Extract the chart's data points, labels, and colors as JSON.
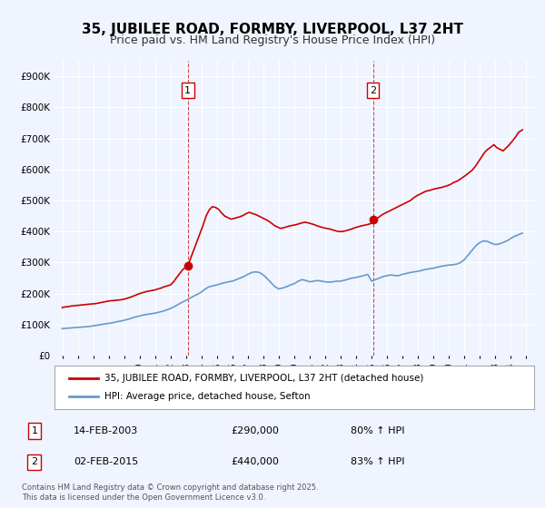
{
  "title": "35, JUBILEE ROAD, FORMBY, LIVERPOOL, L37 2HT",
  "subtitle": "Price paid vs. HM Land Registry's House Price Index (HPI)",
  "title_fontsize": 11,
  "subtitle_fontsize": 9,
  "bg_color": "#f0f4ff",
  "plot_bg_color": "#f0f4ff",
  "grid_color": "#ffffff",
  "red_line_color": "#cc0000",
  "blue_line_color": "#6699cc",
  "ylim": [
    0,
    950000
  ],
  "yticks": [
    0,
    100000,
    200000,
    300000,
    400000,
    500000,
    600000,
    700000,
    800000,
    900000
  ],
  "ytick_labels": [
    "£0",
    "£100K",
    "£200K",
    "£300K",
    "£400K",
    "£500K",
    "£600K",
    "£700K",
    "£800K",
    "£900K"
  ],
  "xlim_start": 1994.5,
  "xlim_end": 2025.5,
  "xtick_years": [
    1995,
    1996,
    1997,
    1998,
    1999,
    2000,
    2001,
    2002,
    2003,
    2004,
    2005,
    2006,
    2007,
    2008,
    2009,
    2010,
    2011,
    2012,
    2013,
    2014,
    2015,
    2016,
    2017,
    2018,
    2019,
    2020,
    2021,
    2022,
    2023,
    2024,
    2025
  ],
  "marker1_x": 2003.12,
  "marker1_y": 290000,
  "marker2_x": 2015.08,
  "marker2_y": 440000,
  "marker1_label": "1",
  "marker2_label": "2",
  "vline1_x": 2003.12,
  "vline2_x": 2015.08,
  "legend_label_red": "35, JUBILEE ROAD, FORMBY, LIVERPOOL, L37 2HT (detached house)",
  "legend_label_blue": "HPI: Average price, detached house, Sefton",
  "table_row1": [
    "1",
    "14-FEB-2003",
    "£290,000",
    "80% ↑ HPI"
  ],
  "table_row2": [
    "2",
    "02-FEB-2015",
    "£440,000",
    "83% ↑ HPI"
  ],
  "footer": "Contains HM Land Registry data © Crown copyright and database right 2025.\nThis data is licensed under the Open Government Licence v3.0.",
  "hpi_data": {
    "years": [
      1995.0,
      1995.25,
      1995.5,
      1995.75,
      1996.0,
      1996.25,
      1996.5,
      1996.75,
      1997.0,
      1997.25,
      1997.5,
      1997.75,
      1998.0,
      1998.25,
      1998.5,
      1998.75,
      1999.0,
      1999.25,
      1999.5,
      1999.75,
      2000.0,
      2000.25,
      2000.5,
      2000.75,
      2001.0,
      2001.25,
      2001.5,
      2001.75,
      2002.0,
      2002.25,
      2002.5,
      2002.75,
      2003.0,
      2003.25,
      2003.5,
      2003.75,
      2004.0,
      2004.25,
      2004.5,
      2004.75,
      2005.0,
      2005.25,
      2005.5,
      2005.75,
      2006.0,
      2006.25,
      2006.5,
      2006.75,
      2007.0,
      2007.25,
      2007.5,
      2007.75,
      2008.0,
      2008.25,
      2008.5,
      2008.75,
      2009.0,
      2009.25,
      2009.5,
      2009.75,
      2010.0,
      2010.25,
      2010.5,
      2010.75,
      2011.0,
      2011.25,
      2011.5,
      2011.75,
      2012.0,
      2012.25,
      2012.5,
      2012.75,
      2013.0,
      2013.25,
      2013.5,
      2013.75,
      2014.0,
      2014.25,
      2014.5,
      2014.75,
      2015.0,
      2015.25,
      2015.5,
      2015.75,
      2016.0,
      2016.25,
      2016.5,
      2016.75,
      2017.0,
      2017.25,
      2017.5,
      2017.75,
      2018.0,
      2018.25,
      2018.5,
      2018.75,
      2019.0,
      2019.25,
      2019.5,
      2019.75,
      2020.0,
      2020.25,
      2020.5,
      2020.75,
      2021.0,
      2021.25,
      2021.5,
      2021.75,
      2022.0,
      2022.25,
      2022.5,
      2022.75,
      2023.0,
      2023.25,
      2023.5,
      2023.75,
      2024.0,
      2024.25,
      2024.5,
      2024.75
    ],
    "values": [
      87000,
      88000,
      89000,
      90000,
      91000,
      92000,
      93000,
      94000,
      96000,
      98000,
      100000,
      102000,
      104000,
      106000,
      109000,
      111000,
      114000,
      117000,
      121000,
      125000,
      128000,
      131000,
      133000,
      135000,
      137000,
      140000,
      143000,
      147000,
      152000,
      158000,
      165000,
      172000,
      178000,
      185000,
      192000,
      198000,
      205000,
      215000,
      222000,
      225000,
      228000,
      232000,
      235000,
      238000,
      240000,
      245000,
      250000,
      255000,
      262000,
      268000,
      270000,
      268000,
      260000,
      248000,
      235000,
      222000,
      215000,
      218000,
      222000,
      228000,
      232000,
      240000,
      245000,
      242000,
      238000,
      240000,
      242000,
      240000,
      238000,
      237000,
      238000,
      240000,
      240000,
      243000,
      247000,
      250000,
      252000,
      255000,
      258000,
      262000,
      240000,
      245000,
      250000,
      255000,
      258000,
      260000,
      258000,
      258000,
      262000,
      265000,
      268000,
      270000,
      272000,
      275000,
      278000,
      280000,
      282000,
      285000,
      288000,
      290000,
      292000,
      293000,
      295000,
      300000,
      310000,
      325000,
      340000,
      355000,
      365000,
      370000,
      368000,
      362000,
      358000,
      360000,
      365000,
      370000,
      378000,
      385000,
      390000,
      395000
    ]
  },
  "price_paid_data": {
    "years": [
      1995.0,
      1995.2,
      1995.4,
      1995.6,
      1995.8,
      1996.0,
      1996.2,
      1996.4,
      1996.6,
      1996.8,
      1997.0,
      1997.2,
      1997.4,
      1997.6,
      1997.8,
      1998.0,
      1998.2,
      1998.4,
      1998.6,
      1998.8,
      1999.0,
      1999.2,
      1999.4,
      1999.6,
      1999.8,
      2000.0,
      2000.2,
      2000.4,
      2000.6,
      2000.8,
      2001.0,
      2001.2,
      2001.4,
      2001.6,
      2001.8,
      2002.0,
      2002.2,
      2002.4,
      2002.6,
      2002.8,
      2003.12,
      2003.5,
      2003.8,
      2004.1,
      2004.3,
      2004.5,
      2004.7,
      2004.9,
      2005.1,
      2005.3,
      2005.5,
      2005.7,
      2005.9,
      2006.1,
      2006.3,
      2006.5,
      2006.7,
      2006.9,
      2007.1,
      2007.3,
      2007.5,
      2007.7,
      2007.9,
      2008.1,
      2008.3,
      2008.5,
      2008.7,
      2008.9,
      2009.1,
      2009.3,
      2009.5,
      2009.7,
      2009.9,
      2010.1,
      2010.3,
      2010.5,
      2010.7,
      2010.9,
      2011.1,
      2011.3,
      2011.5,
      2011.7,
      2011.9,
      2012.1,
      2012.3,
      2012.5,
      2012.7,
      2012.9,
      2013.1,
      2013.3,
      2013.5,
      2013.7,
      2013.9,
      2014.1,
      2014.3,
      2014.5,
      2014.7,
      2014.9,
      2015.08,
      2015.3,
      2015.5,
      2015.7,
      2015.9,
      2016.1,
      2016.3,
      2016.5,
      2016.7,
      2016.9,
      2017.1,
      2017.3,
      2017.5,
      2017.7,
      2017.9,
      2018.1,
      2018.3,
      2018.5,
      2018.7,
      2018.9,
      2019.1,
      2019.3,
      2019.5,
      2019.7,
      2019.9,
      2020.1,
      2020.3,
      2020.5,
      2020.7,
      2020.9,
      2021.1,
      2021.3,
      2021.5,
      2021.7,
      2021.9,
      2022.1,
      2022.3,
      2022.5,
      2022.7,
      2022.9,
      2023.1,
      2023.3,
      2023.5,
      2023.7,
      2023.9,
      2024.1,
      2024.3,
      2024.5,
      2024.75
    ],
    "values": [
      155000,
      157000,
      158000,
      160000,
      161000,
      162000,
      163000,
      164000,
      165000,
      166000,
      167000,
      168000,
      170000,
      172000,
      174000,
      176000,
      177000,
      178000,
      179000,
      180000,
      182000,
      185000,
      188000,
      192000,
      196000,
      200000,
      203000,
      206000,
      208000,
      210000,
      212000,
      215000,
      218000,
      222000,
      225000,
      228000,
      238000,
      252000,
      265000,
      278000,
      290000,
      340000,
      380000,
      420000,
      450000,
      470000,
      480000,
      478000,
      472000,
      460000,
      450000,
      445000,
      440000,
      442000,
      445000,
      448000,
      452000,
      458000,
      462000,
      458000,
      455000,
      450000,
      445000,
      440000,
      435000,
      428000,
      420000,
      415000,
      410000,
      412000,
      415000,
      418000,
      420000,
      422000,
      425000,
      428000,
      430000,
      428000,
      425000,
      422000,
      418000,
      415000,
      412000,
      410000,
      408000,
      405000,
      402000,
      400000,
      400000,
      402000,
      405000,
      408000,
      412000,
      415000,
      418000,
      420000,
      422000,
      425000,
      428000,
      440000,
      448000,
      455000,
      460000,
      465000,
      470000,
      475000,
      480000,
      485000,
      490000,
      495000,
      500000,
      508000,
      515000,
      520000,
      525000,
      530000,
      532000,
      535000,
      538000,
      540000,
      542000,
      545000,
      548000,
      552000,
      558000,
      562000,
      568000,
      575000,
      582000,
      590000,
      598000,
      610000,
      625000,
      640000,
      655000,
      665000,
      672000,
      680000,
      670000,
      665000,
      660000,
      670000,
      680000,
      692000,
      705000,
      720000,
      728000
    ]
  }
}
